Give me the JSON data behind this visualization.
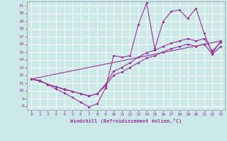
{
  "xlabel": "Windchill (Refroidissement éolien,°C)",
  "xlim": [
    -0.5,
    23.5
  ],
  "ylim": [
    7.5,
    21.5
  ],
  "yticks": [
    8,
    9,
    10,
    11,
    12,
    13,
    14,
    15,
    16,
    17,
    18,
    19,
    20,
    21
  ],
  "xticks": [
    0,
    1,
    2,
    3,
    4,
    5,
    6,
    7,
    8,
    9,
    10,
    11,
    12,
    13,
    14,
    15,
    16,
    17,
    18,
    19,
    20,
    21,
    22,
    23
  ],
  "bg_color": "#cce9e9",
  "grid_color": "#ffffff",
  "line_color": "#993399",
  "series1_x": [
    0,
    1,
    2,
    3,
    4,
    5,
    6,
    7,
    8,
    9,
    10,
    11,
    12,
    13,
    14,
    15,
    16,
    17,
    18,
    19,
    20,
    21,
    22,
    23
  ],
  "series1_y": [
    11.5,
    11.3,
    10.8,
    10.2,
    9.7,
    9.1,
    8.5,
    7.9,
    8.3,
    10.3,
    14.5,
    14.3,
    14.5,
    18.5,
    21.3,
    15.4,
    18.9,
    20.2,
    20.4,
    19.3,
    20.6,
    17.4,
    14.8,
    16.4
  ],
  "series2_x": [
    0,
    1,
    2,
    3,
    4,
    5,
    6,
    7,
    8,
    9,
    10,
    11,
    12,
    13,
    14,
    15,
    16,
    17,
    18,
    19,
    20,
    21,
    22,
    23
  ],
  "series2_y": [
    11.5,
    11.3,
    10.8,
    10.5,
    10.2,
    9.9,
    9.6,
    9.3,
    9.6,
    10.8,
    12.5,
    13.0,
    13.6,
    14.3,
    14.9,
    15.2,
    15.7,
    16.1,
    16.4,
    16.7,
    16.4,
    16.7,
    15.1,
    16.2
  ],
  "series3_x": [
    0,
    1,
    2,
    3,
    4,
    5,
    6,
    7,
    8,
    9,
    10,
    11,
    12,
    13,
    14,
    15,
    16,
    17,
    18,
    19,
    20,
    21,
    22,
    23
  ],
  "series3_y": [
    11.5,
    11.2,
    10.8,
    10.5,
    10.1,
    9.9,
    9.6,
    9.3,
    9.6,
    10.6,
    12.0,
    12.4,
    13.0,
    13.6,
    14.2,
    14.5,
    15.0,
    15.4,
    15.7,
    16.0,
    15.7,
    16.0,
    14.7,
    15.7
  ],
  "series4_x": [
    0,
    23
  ],
  "series4_y": [
    11.5,
    16.4
  ]
}
